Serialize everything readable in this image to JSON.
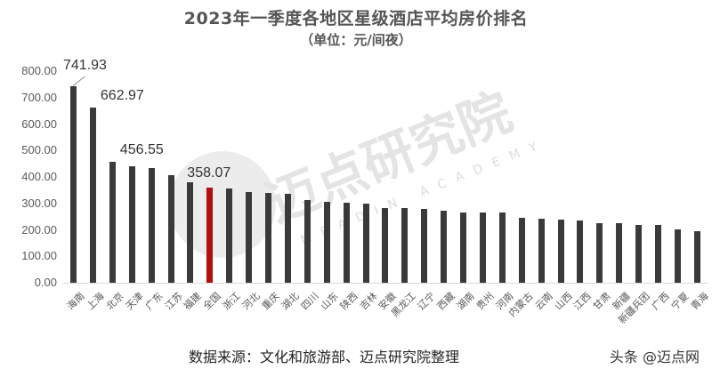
{
  "header": {
    "title": "2023年一季度各地区星级酒店平均房价排名",
    "subtitle": "（单位：元/间夜）"
  },
  "footer": {
    "source": "数据来源：文化和旅游部、迈点研究院整理",
    "brand": "头条 @迈点网"
  },
  "watermark": {
    "text": "迈点研究院",
    "sub": "MEADIN ACADEMY"
  },
  "colors": {
    "bar": "#3a3a3a",
    "highlight": "#b30e0e",
    "text": "#595959"
  },
  "y_ticks": [
    "800.00",
    "700.00",
    "600.00",
    "500.00",
    "400.00",
    "300.00",
    "200.00",
    "100.00",
    "0.00"
  ],
  "chart_data": {
    "type": "bar",
    "title": "2023年一季度各地区星级酒店平均房价排名",
    "subtitle": "（单位：元/间夜）",
    "xlabel": "",
    "ylabel": "元/间夜",
    "ylim": [
      0,
      800
    ],
    "y_tick_step": 100,
    "grid": false,
    "legend": null,
    "highlight_category": "全国",
    "categories": [
      "海南",
      "上海",
      "北京",
      "天津",
      "广东",
      "江苏",
      "福建",
      "全国",
      "浙江",
      "河北",
      "重庆",
      "湖北",
      "四川",
      "山东",
      "陕西",
      "吉林",
      "安徽",
      "黑龙江",
      "辽宁",
      "西藏",
      "湖南",
      "贵州",
      "河南",
      "内蒙古",
      "云南",
      "山西",
      "江西",
      "甘肃",
      "新疆",
      "新疆兵团",
      "广西",
      "宁夏",
      "青海"
    ],
    "values": [
      741.93,
      662.97,
      456.55,
      440,
      433,
      406,
      379,
      358.07,
      355,
      342,
      339,
      335,
      314,
      305,
      302,
      300,
      282,
      282,
      278,
      271,
      266,
      266,
      265,
      245,
      243,
      238,
      236,
      225,
      225,
      220,
      219,
      201,
      195
    ],
    "data_labels": {
      "海南": "741.93",
      "上海": "662.97",
      "北京": "456.55",
      "全国": "358.07"
    }
  }
}
